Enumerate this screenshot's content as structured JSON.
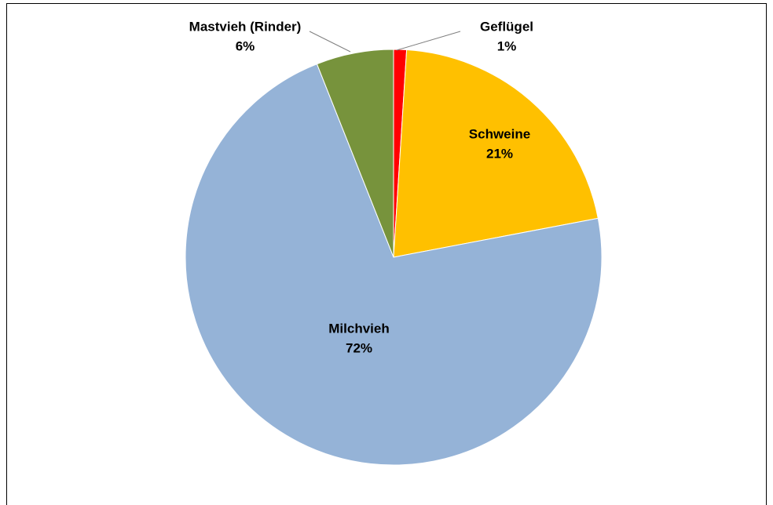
{
  "chart_data": {
    "type": "pie",
    "categories": [
      "Geflügel",
      "Schweine",
      "Milchvieh",
      "Mastvieh (Rinder)"
    ],
    "values": [
      1,
      21,
      72,
      6
    ],
    "value_labels": [
      "1%",
      "21%",
      "72%",
      "6%"
    ],
    "colors": [
      "#ff0000",
      "#ffc000",
      "#95b3d7",
      "#77933c"
    ]
  }
}
